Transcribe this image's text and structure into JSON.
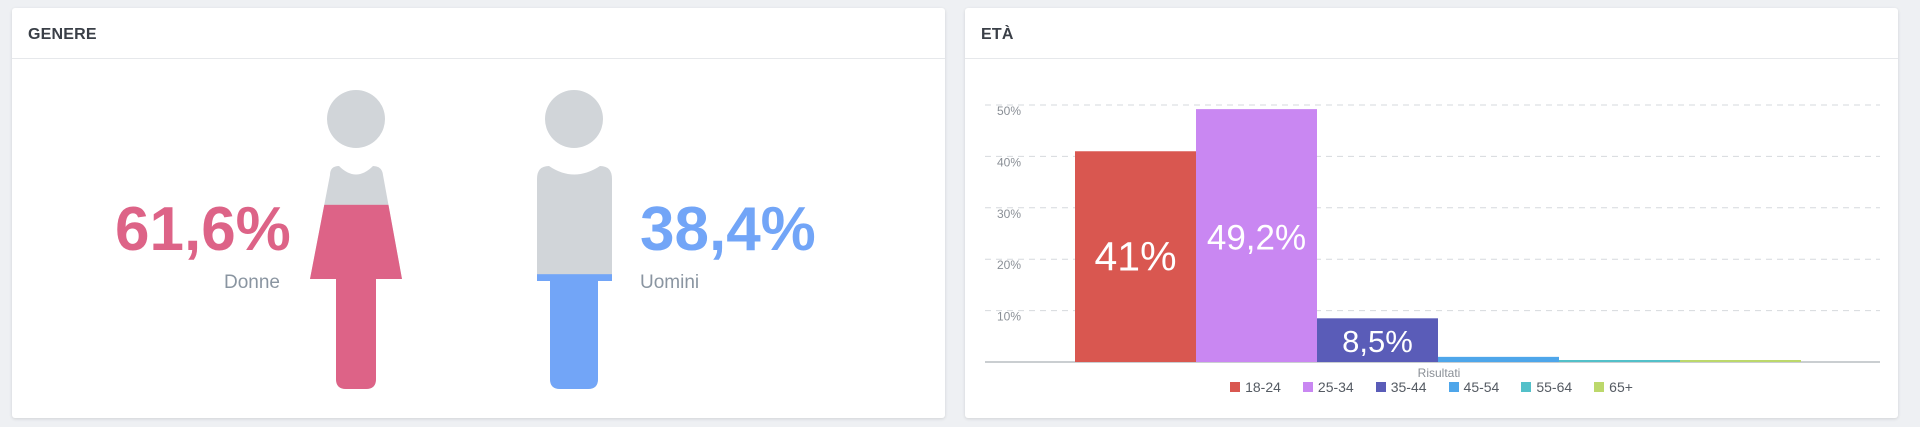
{
  "gender_panel": {
    "title": "GENERE",
    "women": {
      "label": "Donne",
      "value_text": "61,6%",
      "value": 61.6,
      "color": "#dd6387",
      "base_color": "#d1d5d9"
    },
    "men": {
      "label": "Uomini",
      "value_text": "38,4%",
      "value": 38.4,
      "color": "#72a5f7",
      "base_color": "#d1d5d9"
    }
  },
  "age_panel": {
    "title": "ETÀ"
  },
  "chart_data": {
    "type": "bar",
    "title": "ETÀ",
    "xlabel": "Risultati",
    "ylabel": "",
    "categories": [
      "Risultati"
    ],
    "series": [
      {
        "name": "18-24",
        "values": [
          41
        ],
        "label": "41%",
        "color": "#d95750"
      },
      {
        "name": "25-34",
        "values": [
          49.2
        ],
        "label": "49,2%",
        "color": "#c987f2"
      },
      {
        "name": "35-44",
        "values": [
          8.5
        ],
        "label": "8,5%",
        "color": "#5a5cb8"
      },
      {
        "name": "45-54",
        "values": [
          1.0
        ],
        "label": "",
        "color": "#4ea6ea"
      },
      {
        "name": "55-64",
        "values": [
          0.2
        ],
        "label": "",
        "color": "#53c0c9"
      },
      {
        "name": "65+",
        "values": [
          0.1
        ],
        "label": "",
        "color": "#bcd86b"
      }
    ],
    "ylim": [
      0,
      52
    ],
    "yticks": [
      10,
      20,
      30,
      40,
      50
    ],
    "ytick_labels": [
      "10%",
      "20%",
      "30%",
      "40%",
      "50%"
    ],
    "grid": true,
    "legend": "bottom"
  }
}
